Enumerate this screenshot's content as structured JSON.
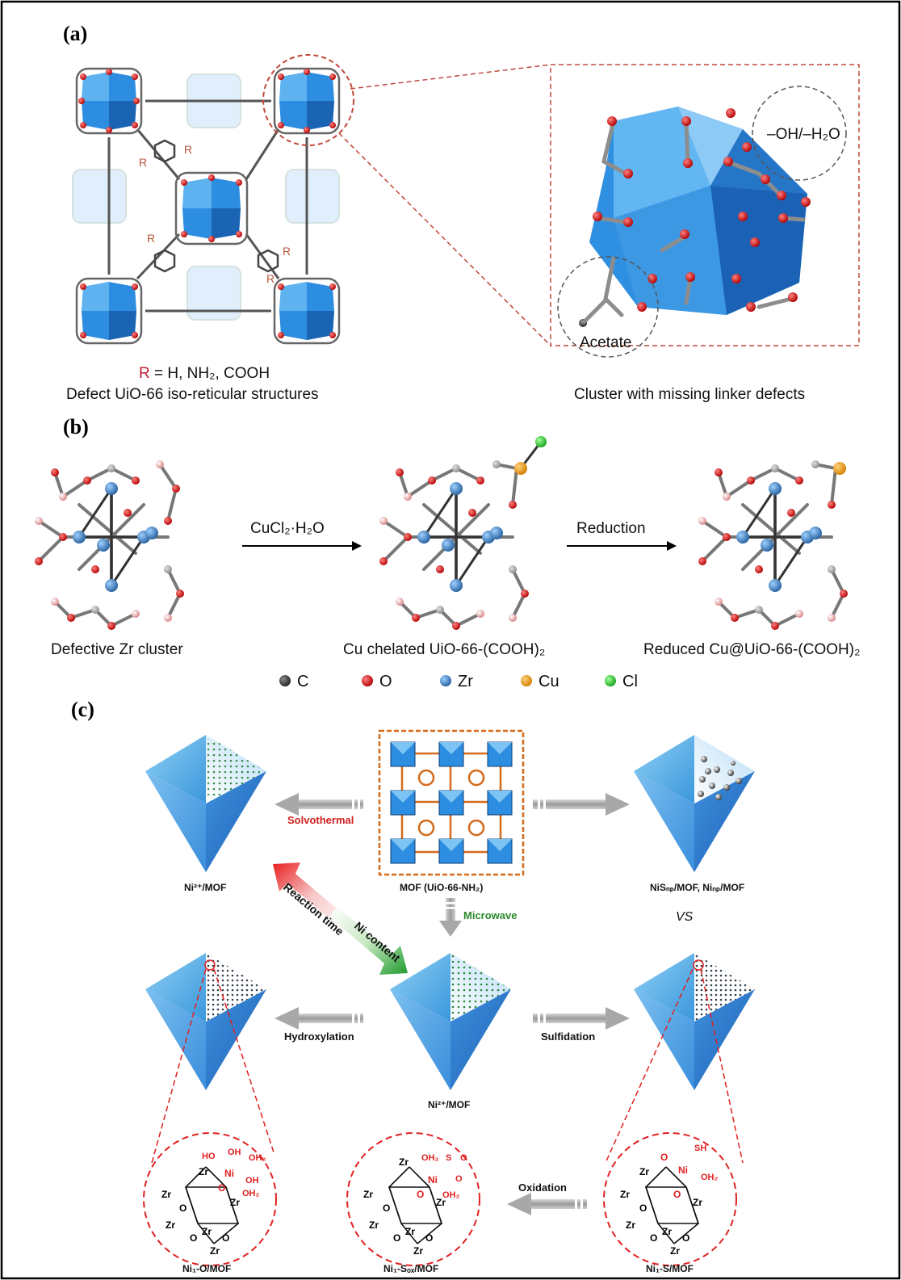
{
  "panels": {
    "a": {
      "label": "(a)",
      "r_prefix": "R",
      "r_rest": " = H, NH₂, COOH",
      "r_substituent": "R",
      "left_caption": "Defect UiO-66 iso-reticular structures",
      "defect_label": "–OH/–H₂O",
      "acetate_label": "Acetate",
      "right_caption": "Cluster with missing linker defects"
    },
    "b": {
      "label": "(b)",
      "step1_reagent": "CuCl₂·H₂O",
      "step2_reagent": "Reduction",
      "captions": [
        "Defective Zr cluster",
        "Cu chelated UiO-66-(COOH)₂",
        "Reduced Cu@UiO-66-(COOH)₂"
      ],
      "legend": [
        {
          "symbol": "C",
          "color": "#5a5a5a"
        },
        {
          "symbol": "O",
          "color": "#d62020"
        },
        {
          "symbol": "Zr",
          "color": "#3d8fd6"
        },
        {
          "symbol": "Cu",
          "color": "#f2a020"
        },
        {
          "symbol": "Cl",
          "color": "#3ad23a"
        }
      ]
    },
    "c": {
      "label": "(c)",
      "solvothermal": "Solvothermal",
      "microwave": "Microwave",
      "hydroxylation": "Hydroxylation",
      "sulfidation": "Sulfidation",
      "oxidation": "Oxidation",
      "reaction_time": "Reaction time",
      "ni_content": "Ni content",
      "vs": "VS",
      "ni2_mof_top": "Ni²⁺/MOF",
      "mof_label": "MOF (UiO-66-NH₂)",
      "nis_mof": "NiSₙₚ/MOF, Niₙₚ/MOF",
      "ni2_mof_center": "Ni²⁺/MOF",
      "ni1_o": "Ni₁-O/MOF",
      "ni1_sox": "Ni₁-Sₒₓ/MOF",
      "ni1_s": "Ni₁-S/MOF",
      "atoms": {
        "zr": "Zr",
        "o": "O",
        "ni": "Ni",
        "ho": "HO",
        "oh": "OH",
        "oh2": "OH₂",
        "s": "S",
        "sh": "SH"
      }
    }
  }
}
